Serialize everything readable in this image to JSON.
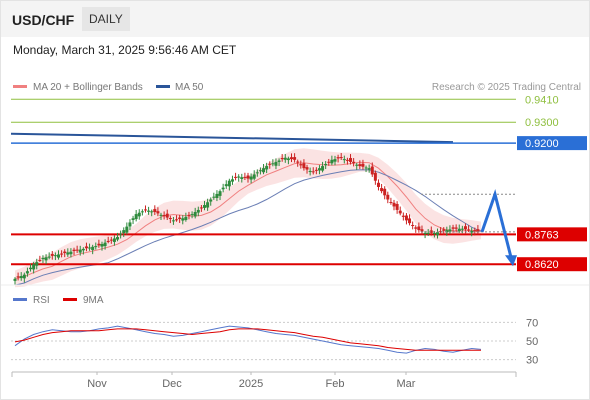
{
  "header": {
    "pair": "USD/CHF",
    "timeframe": "DAILY",
    "timestamp": "Monday, March 31, 2025 9:56:46 AM CET"
  },
  "price_panel": {
    "legend": [
      {
        "label": "MA 20 + Bollinger Bands",
        "color": "#f08080"
      },
      {
        "label": "MA 50",
        "color": "#2a5599"
      }
    ],
    "credit": "Research © 2025 Trading Central",
    "levels": [
      {
        "value": "0.9410",
        "type": "resistance-target",
        "color": "#8fbf3f"
      },
      {
        "value": "0.9300",
        "type": "resistance-target",
        "color": "#8fbf3f"
      },
      {
        "value": "0.9200",
        "type": "pivot",
        "color": "#2a6fd6"
      },
      {
        "value": "0.8763",
        "type": "support",
        "color": "#dd0000"
      },
      {
        "value": "0.8620",
        "type": "support",
        "color": "#dd0000"
      }
    ],
    "current_price_obscured": "0.8760"
  },
  "rsi_panel": {
    "legend": [
      {
        "label": "RSI",
        "color": "#5577cc"
      },
      {
        "label": "9MA",
        "color": "#dd0000"
      }
    ],
    "levels": [
      "70",
      "50",
      "30"
    ]
  },
  "x_axis": {
    "labels": [
      "Nov",
      "Dec",
      "2025",
      "Feb",
      "Mar"
    ]
  },
  "chart_data": {
    "type": "candlestick",
    "symbol": "USD/CHF",
    "interval": "daily",
    "y_range": [
      0.853,
      0.944
    ],
    "x_ticks": [
      "Nov",
      "Dec",
      "2025",
      "Feb",
      "Mar"
    ],
    "horizontal_levels": [
      0.941,
      0.93,
      0.92,
      0.8763,
      0.862
    ],
    "close_series_approx": [
      0.855,
      0.857,
      0.862,
      0.865,
      0.866,
      0.867,
      0.868,
      0.869,
      0.87,
      0.871,
      0.873,
      0.875,
      0.88,
      0.886,
      0.888,
      0.887,
      0.885,
      0.883,
      0.884,
      0.886,
      0.889,
      0.893,
      0.897,
      0.902,
      0.904,
      0.903,
      0.906,
      0.909,
      0.911,
      0.913,
      0.912,
      0.908,
      0.906,
      0.909,
      0.912,
      0.913,
      0.911,
      0.909,
      0.908,
      0.899,
      0.893,
      0.888,
      0.883,
      0.879,
      0.877,
      0.877,
      0.878,
      0.879,
      0.879,
      0.878,
      0.877
    ],
    "projected_path": [
      0.8775,
      0.8955,
      0.8615
    ],
    "rsi": {
      "levels": [
        70,
        50,
        30
      ],
      "values_approx": [
        45,
        52,
        57,
        60,
        62,
        61,
        60,
        60,
        61,
        63,
        64,
        66,
        64,
        62,
        60,
        58,
        57,
        55,
        56,
        58,
        60,
        62,
        64,
        66,
        65,
        64,
        62,
        60,
        58,
        57,
        56,
        54,
        52,
        50,
        48,
        46,
        45,
        44,
        43,
        42,
        40,
        38,
        37,
        40,
        42,
        41,
        39,
        38,
        40,
        42,
        41
      ],
      "ma9_approx": [
        49,
        51,
        54,
        57,
        59,
        60,
        61,
        61,
        61,
        61,
        62,
        63,
        63,
        63,
        62,
        61,
        60,
        59,
        58,
        57,
        58,
        59,
        60,
        62,
        63,
        63,
        63,
        62,
        61,
        60,
        59,
        57,
        55,
        54,
        52,
        50,
        48,
        47,
        46,
        45,
        43,
        42,
        41,
        40,
        40,
        40,
        40,
        40,
        40,
        40,
        40
      ]
    }
  }
}
